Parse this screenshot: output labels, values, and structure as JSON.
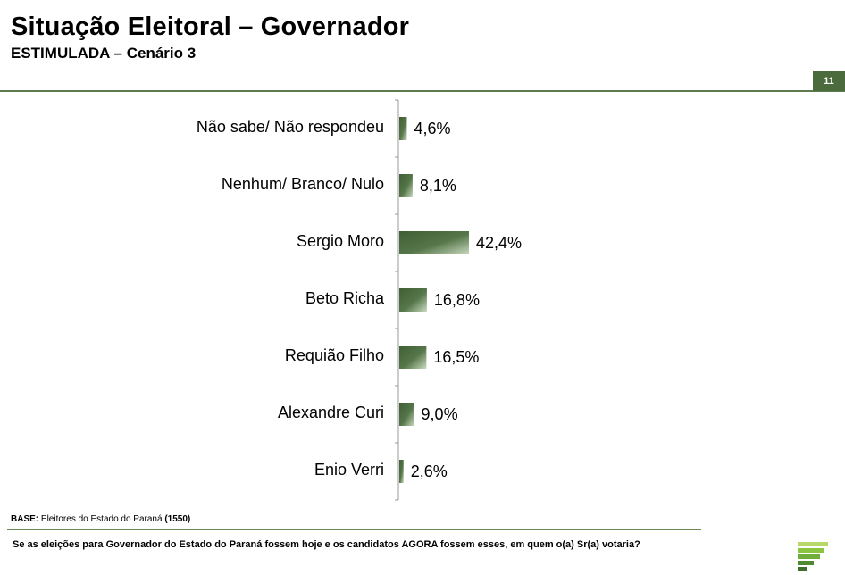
{
  "header": {
    "title": "Situação Eleitoral – Governador",
    "subtitle": "ESTIMULADA – Cenário 3",
    "page_number": "11"
  },
  "chart_data": {
    "type": "bar",
    "orientation": "horizontal",
    "categories": [
      "Não sabe/ Não respondeu",
      "Nenhum/ Branco/ Nulo",
      "Sergio Moro",
      "Beto Richa",
      "Requião Filho",
      "Alexandre Curi",
      "Enio Verri"
    ],
    "values": [
      4.6,
      8.1,
      42.4,
      16.8,
      16.5,
      9.0,
      2.6
    ],
    "value_labels": [
      "4,6%",
      "8,1%",
      "42,4%",
      "16,8%",
      "16,5%",
      "9,0%",
      "2,6%"
    ],
    "unit": "%",
    "colors": {
      "bar_dark": "#3f5e34",
      "bar_light": "#c9d9bf",
      "axis": "#999999"
    }
  },
  "footer": {
    "base_label": "BASE:",
    "base_text": "Eleitores do Estado do Paraná",
    "base_count": "(1550)",
    "question": "Se as eleições para Governador do Estado do Paraná fossem hoje e os candidatos AGORA fossem esses, em quem o(a) Sr(a) votaria?"
  },
  "logo": {
    "icon": "stacked-bars-logo-icon",
    "colors": [
      "#8cc63f",
      "#6fae3a",
      "#4f8a33",
      "#3d6e2a"
    ]
  }
}
